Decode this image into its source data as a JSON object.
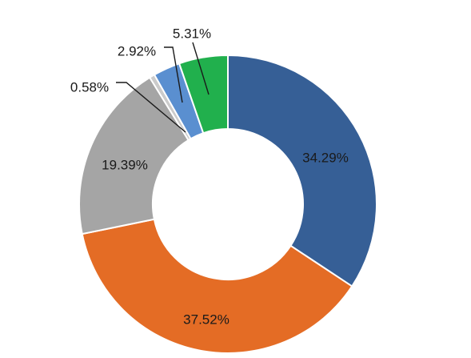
{
  "chart_data": {
    "type": "pie",
    "variant": "donut",
    "values": [
      34.29,
      37.52,
      19.39,
      0.58,
      2.92,
      5.31
    ],
    "labels": [
      "34.29%",
      "37.52%",
      "19.39%",
      "0.58%",
      "2.92%",
      "5.31%"
    ],
    "colors": [
      "#365f96",
      "#e46c25",
      "#a5a5a5",
      "#cbcbcb",
      "#5a8fd0",
      "#21b04d"
    ],
    "legend": "none"
  }
}
